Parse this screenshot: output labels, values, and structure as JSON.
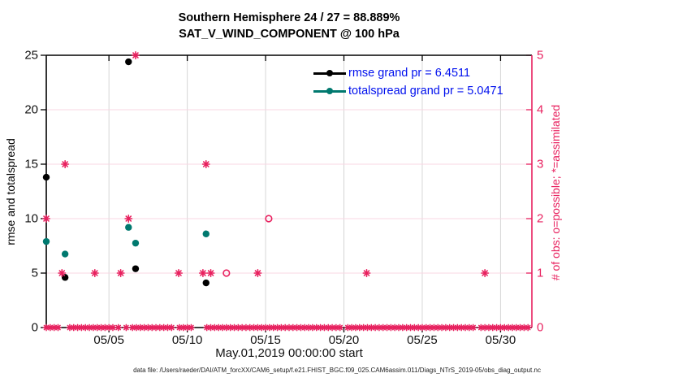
{
  "title": {
    "line1": "Southern Hemisphere 24 / 27 = 88.889%",
    "line2": "SAT_V_WIND_COMPONENT @ 100 hPa"
  },
  "legend": {
    "text_color": "#0010ee",
    "items": [
      {
        "name": "rmse",
        "label": "rmse grand pr = 6.4511",
        "color": "#000000"
      },
      {
        "name": "totalspread",
        "label": "totalspread grand pr = 5.0471",
        "color": "#00796f"
      }
    ]
  },
  "axes": {
    "left": {
      "title": "rmse and totalspread",
      "color": "#000000",
      "range": [
        0,
        25
      ],
      "ticks": [
        {
          "v": 0,
          "label": "0"
        },
        {
          "v": 5,
          "label": "5"
        },
        {
          "v": 10,
          "label": "10"
        },
        {
          "v": 15,
          "label": "15"
        },
        {
          "v": 20,
          "label": "20"
        },
        {
          "v": 25,
          "label": "25"
        }
      ]
    },
    "right": {
      "title": "# of obs: o=possible; *=assimilated",
      "color": "#e8215f",
      "range": [
        0,
        5
      ],
      "ticks": [
        {
          "v": 0,
          "label": "0"
        },
        {
          "v": 1,
          "label": "1"
        },
        {
          "v": 2,
          "label": "2"
        },
        {
          "v": 3,
          "label": "3"
        },
        {
          "v": 4,
          "label": "4"
        },
        {
          "v": 5,
          "label": "5"
        }
      ]
    },
    "x": {
      "title": "May.01,2019 00:00:00 start",
      "range_days": [
        0,
        31
      ],
      "ticks": [
        {
          "day": 4,
          "label": "05/05"
        },
        {
          "day": 9,
          "label": "05/10"
        },
        {
          "day": 14,
          "label": "05/15"
        },
        {
          "day": 19,
          "label": "05/20"
        },
        {
          "day": 24,
          "label": "05/25"
        },
        {
          "day": 29,
          "label": "05/30"
        }
      ]
    }
  },
  "grid": {
    "h_color": "#f8d7e3",
    "v_color": "#d6d6d6"
  },
  "footer": {
    "text": "data file: /Users/raeder/DAI/ATM_forcXX/CAM6_setup/f.e21.FHIST_BGC.f09_025.CAM6assim.011/Diags_NTrS_2019-05/obs_diag_output.nc"
  },
  "chart_data": {
    "type": "scatter",
    "title": "Southern Hemisphere 24 / 27 = 88.889% — SAT_V_WIND_COMPONENT @ 100 hPa",
    "x_unit": "days since May.01,2019 00:00:00",
    "xlim_days": [
      0,
      31
    ],
    "left_ylim": [
      0,
      25
    ],
    "right_ylim": [
      0,
      5
    ],
    "series": [
      {
        "name": "rmse",
        "axis": "left",
        "marker": "filled-circle",
        "color": "#000000",
        "points": [
          [
            0.0,
            13.8
          ],
          [
            1.2,
            4.6
          ],
          [
            5.25,
            24.4
          ],
          [
            5.7,
            5.4
          ],
          [
            10.2,
            4.1
          ]
        ]
      },
      {
        "name": "totalspread",
        "axis": "left",
        "marker": "filled-circle",
        "color": "#00796f",
        "points": [
          [
            0.0,
            7.9
          ],
          [
            1.2,
            6.75
          ],
          [
            5.25,
            9.2
          ],
          [
            5.7,
            7.75
          ],
          [
            10.2,
            8.6
          ]
        ]
      },
      {
        "name": "assimilated-count",
        "axis": "right",
        "marker": "star",
        "color": "#e8215f",
        "points": [
          [
            0.0,
            2
          ],
          [
            1.0,
            1
          ],
          [
            1.2,
            3
          ],
          [
            3.1,
            1
          ],
          [
            4.75,
            1
          ],
          [
            5.25,
            2
          ],
          [
            5.7,
            5
          ],
          [
            8.45,
            1
          ],
          [
            10.0,
            1
          ],
          [
            10.2,
            3
          ],
          [
            10.5,
            1
          ],
          [
            13.5,
            1
          ],
          [
            20.45,
            1
          ],
          [
            28.0,
            1
          ]
        ]
      },
      {
        "name": "possible-count",
        "axis": "right",
        "marker": "open-circle",
        "color": "#e8215f",
        "points": [
          [
            11.5,
            1
          ],
          [
            14.2,
            2
          ]
        ]
      }
    ],
    "zero_row": {
      "name": "assimilated-count-zero",
      "axis": "right",
      "value": 0,
      "marker": "star",
      "color": "#e8215f",
      "step_days": 0.25,
      "cluster_ranges": [
        [
          0,
          0.75
        ],
        [
          1.5,
          3.0
        ],
        [
          3.25,
          4.25
        ],
        [
          4.6,
          4.6
        ],
        [
          5.1,
          5.1
        ],
        [
          5.5,
          8.0
        ],
        [
          8.5,
          9.25
        ],
        [
          10.25,
          12.25
        ],
        [
          12.5,
          18.9
        ],
        [
          19.25,
          23.0
        ],
        [
          23.25,
          27.25
        ],
        [
          27.75,
          30.9
        ]
      ]
    }
  }
}
